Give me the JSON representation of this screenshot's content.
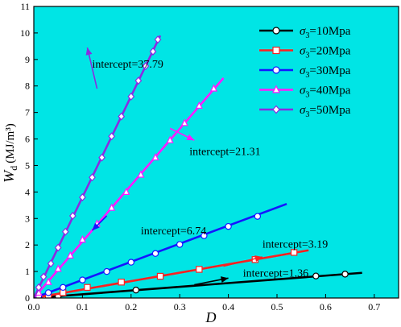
{
  "chart_data": {
    "type": "line",
    "x_label": "D",
    "y_label_main": "W",
    "y_label_sub": "d",
    "y_label_unit": "(MJ/m³)",
    "xlim": [
      0.0,
      0.75
    ],
    "ylim": [
      0,
      11
    ],
    "x_ticks": [
      "0.0",
      "0.1",
      "0.2",
      "0.3",
      "0.4",
      "0.5",
      "0.6",
      "0.7"
    ],
    "y_ticks": [
      "0",
      "1",
      "2",
      "3",
      "4",
      "5",
      "6",
      "7",
      "8",
      "9",
      "10",
      "11"
    ],
    "legend_position": "top-right",
    "background": "#00e5e5",
    "series": [
      {
        "name": "σ3=10Mpa",
        "sigma": "σ",
        "sub": "3",
        "rest": "=10Mpa",
        "color": "#000000",
        "marker": "circle",
        "line": [
          [
            0.0,
            0.0
          ],
          [
            0.675,
            0.95
          ]
        ],
        "points": [
          [
            0.02,
            0.02
          ],
          [
            0.05,
            0.06
          ],
          [
            0.21,
            0.3
          ],
          [
            0.58,
            0.83
          ],
          [
            0.64,
            0.9
          ]
        ]
      },
      {
        "name": "σ3=20Mpa",
        "sigma": "σ",
        "sub": "3",
        "rest": "=20Mpa",
        "color": "#ff2020",
        "marker": "square",
        "line": [
          [
            0.0,
            0.0
          ],
          [
            0.565,
            1.8
          ]
        ],
        "points": [
          [
            0.01,
            0.03
          ],
          [
            0.03,
            0.1
          ],
          [
            0.06,
            0.2
          ],
          [
            0.11,
            0.4
          ],
          [
            0.18,
            0.6
          ],
          [
            0.26,
            0.82
          ],
          [
            0.34,
            1.08
          ],
          [
            0.455,
            1.45
          ],
          [
            0.535,
            1.72
          ]
        ]
      },
      {
        "name": "σ3=30Mpa",
        "sigma": "σ",
        "sub": "3",
        "rest": "=30Mpa",
        "color": "#1515ff",
        "marker": "circle",
        "line": [
          [
            0.0,
            0.0
          ],
          [
            0.52,
            3.55
          ]
        ],
        "points": [
          [
            0.01,
            0.07
          ],
          [
            0.03,
            0.2
          ],
          [
            0.06,
            0.4
          ],
          [
            0.1,
            0.68
          ],
          [
            0.15,
            1.0
          ],
          [
            0.2,
            1.35
          ],
          [
            0.25,
            1.68
          ],
          [
            0.3,
            2.02
          ],
          [
            0.35,
            2.35
          ],
          [
            0.4,
            2.7
          ],
          [
            0.46,
            3.08
          ]
        ]
      },
      {
        "name": "σ3=40Mpa",
        "sigma": "σ",
        "sub": "3",
        "rest": "=40Mpa",
        "color": "#ff1aff",
        "marker": "triangle",
        "line": [
          [
            0.0,
            0.0
          ],
          [
            0.39,
            8.3
          ]
        ],
        "points": [
          [
            0.01,
            0.2
          ],
          [
            0.03,
            0.6
          ],
          [
            0.05,
            1.1
          ],
          [
            0.075,
            1.6
          ],
          [
            0.1,
            2.2
          ],
          [
            0.13,
            2.8
          ],
          [
            0.16,
            3.4
          ],
          [
            0.19,
            4.0
          ],
          [
            0.22,
            4.65
          ],
          [
            0.25,
            5.3
          ],
          [
            0.28,
            5.95
          ],
          [
            0.31,
            6.6
          ],
          [
            0.34,
            7.25
          ],
          [
            0.37,
            7.9
          ]
        ]
      },
      {
        "name": "σ3=50Mpa",
        "sigma": "σ",
        "sub": "3",
        "rest": "=50Mpa",
        "color": "#8a2be2",
        "marker": "diamond",
        "line": [
          [
            0.0,
            0.0
          ],
          [
            0.26,
            9.9
          ]
        ],
        "points": [
          [
            0.01,
            0.4
          ],
          [
            0.02,
            0.8
          ],
          [
            0.035,
            1.3
          ],
          [
            0.05,
            1.9
          ],
          [
            0.065,
            2.5
          ],
          [
            0.08,
            3.1
          ],
          [
            0.1,
            3.8
          ],
          [
            0.12,
            4.55
          ],
          [
            0.14,
            5.3
          ],
          [
            0.16,
            6.1
          ],
          [
            0.18,
            6.85
          ],
          [
            0.2,
            7.6
          ],
          [
            0.215,
            8.2
          ],
          [
            0.23,
            8.75
          ],
          [
            0.245,
            9.3
          ],
          [
            0.255,
            9.75
          ]
        ]
      }
    ],
    "annotations": [
      {
        "text": "intercept=37.79",
        "color": "#8a2be2",
        "x": 0.12,
        "y": 8.85,
        "arrow_from": [
          0.13,
          7.9
        ],
        "arrow_to": [
          0.11,
          9.45
        ]
      },
      {
        "text": "intercept=21.31",
        "color": "#ff1aff",
        "x": 0.32,
        "y": 5.55,
        "arrow_from": [
          0.28,
          6.4
        ],
        "arrow_to": [
          0.33,
          5.95
        ]
      },
      {
        "text": "intercept=6.74",
        "color": "#1515ff",
        "x": 0.22,
        "y": 2.55,
        "arrow_from": [
          0.15,
          3.1
        ],
        "arrow_to": [
          0.12,
          2.55
        ]
      },
      {
        "text": "intercept=3.19",
        "color": "#ff2020",
        "x": 0.47,
        "y": 2.05,
        "arrow_from": [
          0.39,
          1.2
        ],
        "arrow_to": [
          0.47,
          1.55
        ]
      },
      {
        "text": "intercept=1.36",
        "color": "#000000",
        "x": 0.43,
        "y": 0.95,
        "arrow_from": [
          0.33,
          0.5
        ],
        "arrow_to": [
          0.4,
          0.75
        ]
      }
    ]
  }
}
